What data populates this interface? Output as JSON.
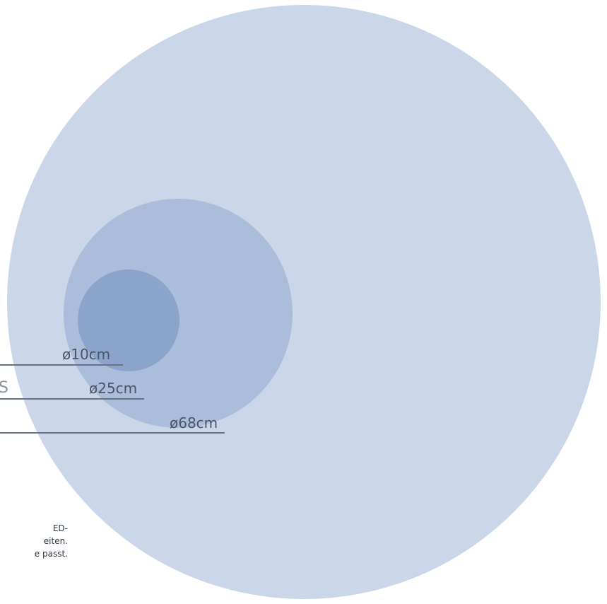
{
  "colors": {
    "large_circle": "#cbd6e8",
    "medium_circle": "#aabedc",
    "small_circle": "#8aa4cb",
    "leader_line": "#66757f"
  },
  "dimensions": {
    "small": "ø10cm",
    "medium": "ø25cm",
    "large": "ø68cm"
  },
  "side_letter": "S",
  "note_lines": [
    "ED-",
    "eiten.",
    "e passt."
  ]
}
